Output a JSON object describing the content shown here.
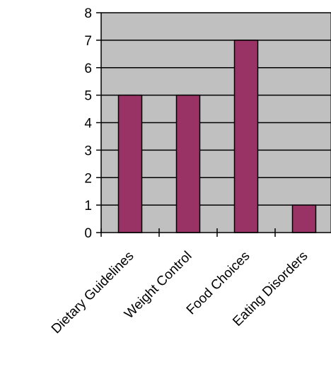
{
  "chart_data": {
    "type": "bar",
    "categories": [
      "Dietary Guidelines",
      "Weight Control",
      "Food Choices",
      "Eating Disorders"
    ],
    "values": [
      5,
      5,
      7,
      1
    ],
    "ylim": [
      0,
      8
    ],
    "yticks": [
      0,
      1,
      2,
      3,
      4,
      5,
      6,
      7,
      8
    ],
    "grid": true,
    "legend": "none",
    "colors": {
      "bar": "#993366",
      "plot_background": "#c0c0c0",
      "gridline": "#000000"
    }
  }
}
